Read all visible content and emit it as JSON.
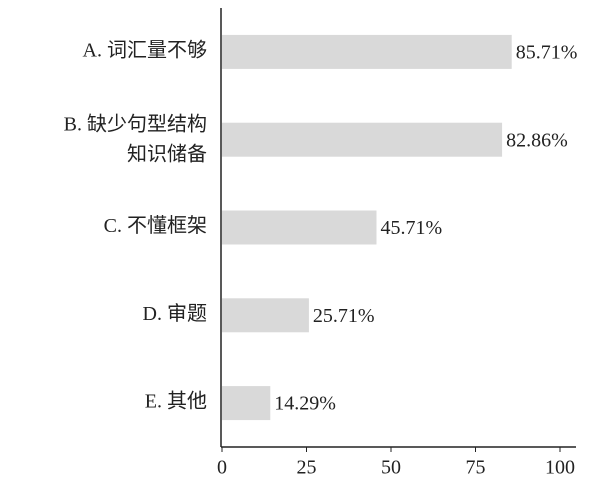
{
  "chart_data": {
    "type": "bar",
    "orientation": "horizontal",
    "categories": [
      "A. 词汇量不够",
      "B. 缺少句型结构知识储备",
      "C. 不懂框架",
      "D. 审题",
      "E. 其他"
    ],
    "values": [
      85.71,
      82.86,
      45.71,
      25.71,
      14.29
    ],
    "value_labels": [
      "85.71%",
      "82.86%",
      "45.71%",
      "25.71%",
      "14.29%"
    ],
    "color": "#d9d9d9",
    "xlim": [
      0,
      100
    ],
    "xticks": [
      0,
      25,
      50,
      75,
      100
    ]
  }
}
